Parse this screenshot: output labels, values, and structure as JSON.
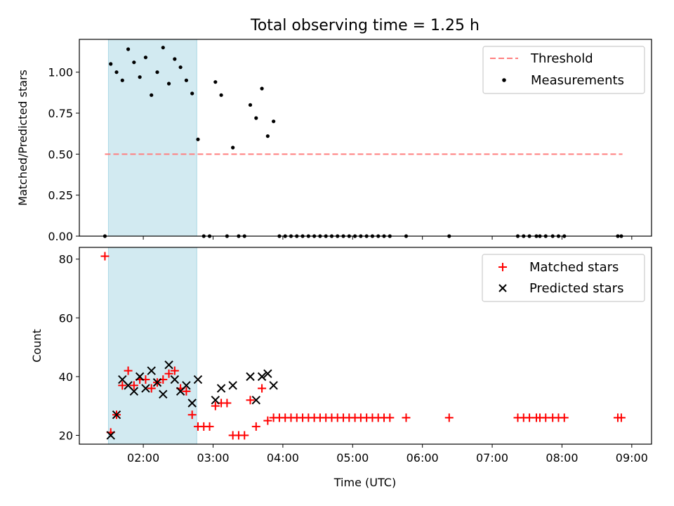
{
  "title": "Total observing time = 1.25 h",
  "chart_data": [
    {
      "type": "scatter",
      "ylabel": "Matched/Predicted stars",
      "ylim": [
        0,
        1.2
      ],
      "yticks": [
        0,
        0.25,
        0.5,
        0.75,
        1.0
      ],
      "ytick_labels": [
        "0.00",
        "0.25",
        "0.50",
        "0.75",
        "1.00"
      ],
      "shaded_range": [
        "01:30",
        "02:46"
      ],
      "shade_color": "#add8e6",
      "threshold": {
        "name": "Threshold",
        "value": 0.5,
        "x_range": [
          "01:27",
          "08:52"
        ],
        "color": "#ff7f7f"
      },
      "series": [
        {
          "name": "Measurements",
          "marker": "dot",
          "color": "#000000",
          "x": [
            "01:27",
            "01:32",
            "01:37",
            "01:42",
            "01:47",
            "01:52",
            "01:57",
            "02:02",
            "02:07",
            "02:12",
            "02:17",
            "02:22",
            "02:27",
            "02:32",
            "02:37",
            "02:42",
            "02:47",
            "02:52",
            "02:57",
            "03:02",
            "03:07",
            "03:12",
            "03:17",
            "03:22",
            "03:27",
            "03:32",
            "03:37",
            "03:42",
            "03:47",
            "03:52",
            "03:57",
            "04:02",
            "04:07",
            "04:12",
            "04:17",
            "04:22",
            "04:27",
            "04:32",
            "04:37",
            "04:42",
            "04:47",
            "04:52",
            "04:57",
            "05:02",
            "05:07",
            "05:12",
            "05:17",
            "05:22",
            "05:27",
            "05:32",
            "05:46",
            "06:23",
            "07:22",
            "07:27",
            "07:32",
            "07:38",
            "07:41",
            "07:46",
            "07:52",
            "07:57",
            "08:02",
            "08:48",
            "08:51"
          ],
          "y": [
            0,
            1.05,
            1.0,
            0.95,
            1.14,
            1.06,
            0.97,
            1.09,
            0.86,
            1.0,
            1.15,
            0.93,
            1.08,
            1.03,
            0.95,
            0.87,
            0.59,
            0,
            0,
            0.94,
            0.86,
            0,
            0.54,
            0,
            0,
            0.8,
            0.72,
            0.9,
            0.61,
            0.7,
            0,
            0,
            0,
            0,
            0,
            0,
            0,
            0,
            0,
            0,
            0,
            0,
            0,
            0,
            0,
            0,
            0,
            0,
            0,
            0,
            0,
            0,
            0,
            0,
            0,
            0,
            0,
            0,
            0,
            0,
            0,
            0,
            0
          ]
        }
      ]
    },
    {
      "type": "scatter",
      "ylabel": "Count",
      "xlabel": "Time (UTC)",
      "ylim": [
        17,
        84
      ],
      "yticks": [
        20,
        40,
        60,
        80
      ],
      "xlim": [
        "01:05",
        "09:17"
      ],
      "xticks": [
        "02:00",
        "03:00",
        "04:00",
        "05:00",
        "06:00",
        "07:00",
        "08:00",
        "09:00"
      ],
      "shaded_range": [
        "01:30",
        "02:46"
      ],
      "shade_color": "#add8e6",
      "series": [
        {
          "name": "Matched stars",
          "marker": "plus",
          "color": "#ff0000",
          "x": [
            "01:27",
            "01:32",
            "01:37",
            "01:42",
            "01:47",
            "01:52",
            "01:57",
            "02:02",
            "02:07",
            "02:12",
            "02:17",
            "02:22",
            "02:27",
            "02:32",
            "02:37",
            "02:42",
            "02:47",
            "02:52",
            "02:57",
            "03:02",
            "03:07",
            "03:12",
            "03:17",
            "03:22",
            "03:27",
            "03:32",
            "03:37",
            "03:42",
            "03:47",
            "03:52",
            "03:57",
            "04:02",
            "04:07",
            "04:12",
            "04:17",
            "04:22",
            "04:27",
            "04:32",
            "04:37",
            "04:42",
            "04:47",
            "04:52",
            "04:57",
            "05:02",
            "05:07",
            "05:12",
            "05:17",
            "05:22",
            "05:27",
            "05:32",
            "05:46",
            "06:23",
            "07:22",
            "07:27",
            "07:32",
            "07:38",
            "07:41",
            "07:46",
            "07:52",
            "07:57",
            "08:02",
            "08:48",
            "08:51"
          ],
          "y": [
            81,
            21,
            27,
            37,
            42,
            37,
            39,
            39,
            36,
            38,
            39,
            41,
            42,
            36,
            35,
            27,
            23,
            23,
            23,
            30,
            31,
            31,
            20,
            20,
            20,
            32,
            23,
            36,
            25,
            26,
            26,
            26,
            26,
            26,
            26,
            26,
            26,
            26,
            26,
            26,
            26,
            26,
            26,
            26,
            26,
            26,
            26,
            26,
            26,
            26,
            26,
            26,
            26,
            26,
            26,
            26,
            26,
            26,
            26,
            26,
            26,
            26,
            26
          ]
        },
        {
          "name": "Predicted stars",
          "marker": "x",
          "color": "#000000",
          "x": [
            "01:32",
            "01:37",
            "01:42",
            "01:47",
            "01:52",
            "01:57",
            "02:02",
            "02:07",
            "02:12",
            "02:17",
            "02:22",
            "02:27",
            "02:32",
            "02:37",
            "02:42",
            "02:47",
            "03:02",
            "03:07",
            "03:17",
            "03:32",
            "03:37",
            "03:42",
            "03:47",
            "03:52"
          ],
          "y": [
            20,
            27,
            39,
            37,
            35,
            40,
            36,
            42,
            38,
            34,
            44,
            39,
            35,
            37,
            31,
            39,
            32,
            36,
            37,
            40,
            32,
            40,
            41,
            37
          ]
        }
      ]
    }
  ]
}
